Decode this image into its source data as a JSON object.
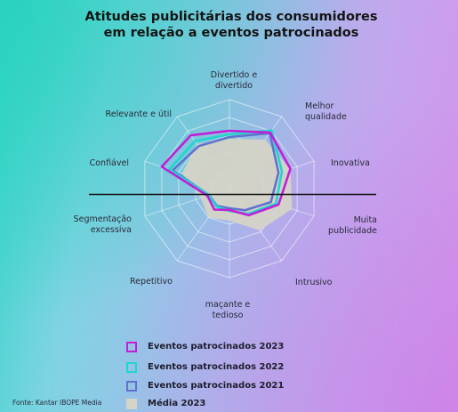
{
  "title_lines": [
    "Atitudes publicitárias dos consumidores",
    "em relação a eventos patrocinados"
  ],
  "source": "Fonte: Kantar IBOPE Media",
  "colors": {
    "series_2023": "#c21fd6",
    "series_2022": "#1ed7cf",
    "series_2021": "#5f73cc",
    "media": "#d6d4c6",
    "grid": "#ffffff",
    "divider": "#111111"
  },
  "legend": [
    {
      "label": "Eventos patrocinados 2023",
      "series": "2023"
    },
    {
      "label": "Eventos  patrocinados  2022",
      "series": "2022"
    },
    {
      "label": "Eventos patrocinados 2021",
      "series": "2021"
    },
    {
      "label": "Média 2023",
      "series": "media"
    }
  ],
  "chart_data": {
    "type": "radar",
    "title": "Atitudes publicitárias dos consumidores em relação a eventos patrocinados",
    "categories": [
      "Divertido e divertido",
      "Melhor qualidade",
      "Inovativa",
      "Muita publicidade",
      "Intrusivo",
      "maçante e tedioso",
      "Repetitivo",
      "Segmentação excessiva",
      "Confiável",
      "Relevante e útil"
    ],
    "category_lines": [
      [
        "Divertido e",
        "divertido"
      ],
      [
        "Melhor",
        "qualidade"
      ],
      [
        "Inovativa"
      ],
      [
        "Muita",
        "publicidade"
      ],
      [
        "Intrusivo"
      ],
      [
        "maçante e",
        "tedioso"
      ],
      [
        "Repetitivo"
      ],
      [
        "Segmentação",
        "excessiva"
      ],
      [
        "Confiável"
      ],
      [
        "Relevante e útil"
      ]
    ],
    "rmax": 1,
    "rings": 5,
    "series": [
      {
        "name": "Média 2023",
        "key": "media",
        "values": [
          0.56,
          0.68,
          0.72,
          0.74,
          0.58,
          0.36,
          0.4,
          0.34,
          0.56,
          0.62
        ]
      },
      {
        "name": "Eventos patrocinados 2021",
        "key": "2021",
        "values": [
          0.58,
          0.77,
          0.58,
          0.49,
          0.3,
          0.22,
          0.24,
          0.24,
          0.67,
          0.59
        ]
      },
      {
        "name": "Eventos  patrocinados  2022",
        "key": "2022",
        "values": [
          0.61,
          0.81,
          0.62,
          0.55,
          0.35,
          0.25,
          0.25,
          0.24,
          0.71,
          0.66
        ]
      },
      {
        "name": "Eventos patrocinados 2023",
        "key": "2023",
        "values": [
          0.65,
          0.78,
          0.72,
          0.58,
          0.37,
          0.24,
          0.29,
          0.26,
          0.8,
          0.74
        ]
      }
    ]
  }
}
